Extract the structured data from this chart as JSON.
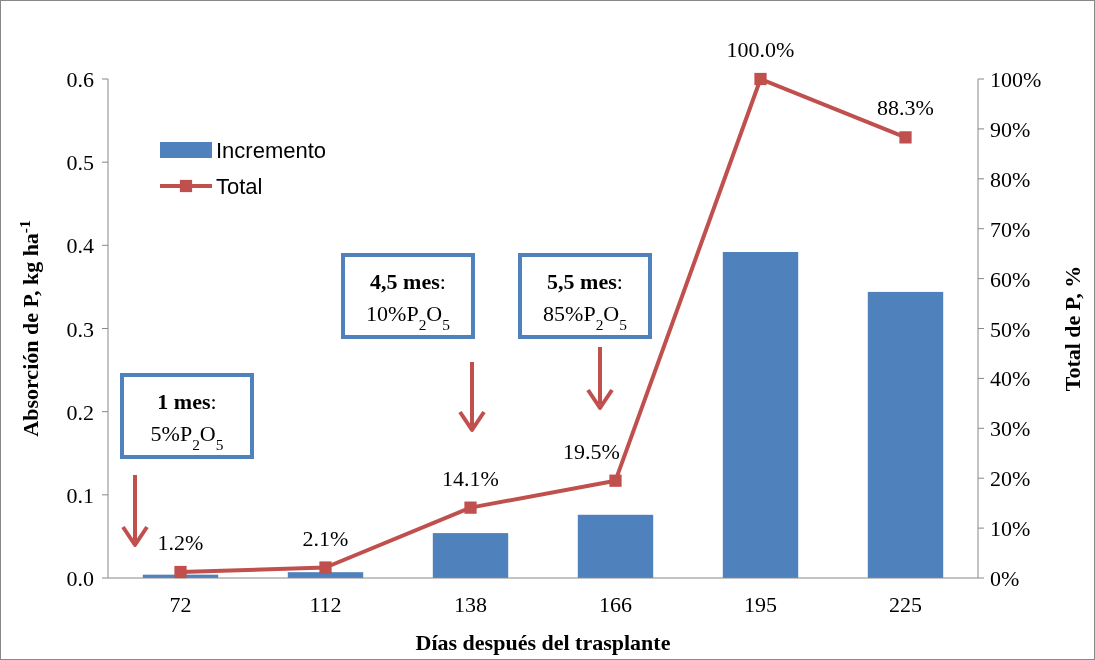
{
  "chart_data": {
    "type": "bar",
    "xlabel": "Días después del trasplante",
    "ylabel": "Absorción de P, kg ha$^{-1}$",
    "y2label": "Total de P, %",
    "categories": [
      "72",
      "112",
      "138",
      "166",
      "195",
      "225"
    ],
    "series": [
      {
        "name": "Incremento",
        "color": "#4f81bd",
        "values": [
          0.004,
          0.007,
          0.054,
          0.076,
          0.392,
          0.344
        ]
      },
      {
        "name": "Total",
        "type": "line",
        "axis": "y2",
        "color": "#c0504d",
        "marker": "square",
        "values": [
          1.2,
          2.1,
          14.1,
          19.5,
          100,
          88.3
        ],
        "value_labels": [
          "1.2%",
          "2.1%",
          "14.1%",
          "19.5%",
          "100.0%",
          "88.3%"
        ]
      }
    ],
    "ylim": [
      0,
      0.6
    ],
    "yticks": [
      {
        "value": 0,
        "label": "0.0"
      },
      0.1,
      0.2,
      0.3,
      0.4,
      0.5,
      0.6
    ],
    "y2lim": [
      0,
      100
    ],
    "y2ticks": [
      {
        "value": 0,
        "label": "0%"
      },
      {
        "value": 10,
        "label": "10%"
      },
      {
        "value": 20,
        "label": "20%"
      },
      {
        "value": 30,
        "label": "30%"
      },
      {
        "value": 40,
        "label": "40%"
      },
      {
        "value": 50,
        "label": "50%"
      },
      {
        "value": 60,
        "label": "60%"
      },
      {
        "value": 70,
        "label": "70%"
      },
      {
        "value": 80,
        "label": "80%"
      },
      {
        "value": 90,
        "label": "90%"
      },
      {
        "value": 100,
        "label": "100%"
      }
    ],
    "legend": "top left",
    "annotations": [
      "1 mes: 5%P$_{2}$O$_{5}$",
      "4,5 mes: 10%P$_{2}$O$_{5}$",
      "5,5 mes: 85%P$_{2}$O$_{5}$"
    ]
  }
}
